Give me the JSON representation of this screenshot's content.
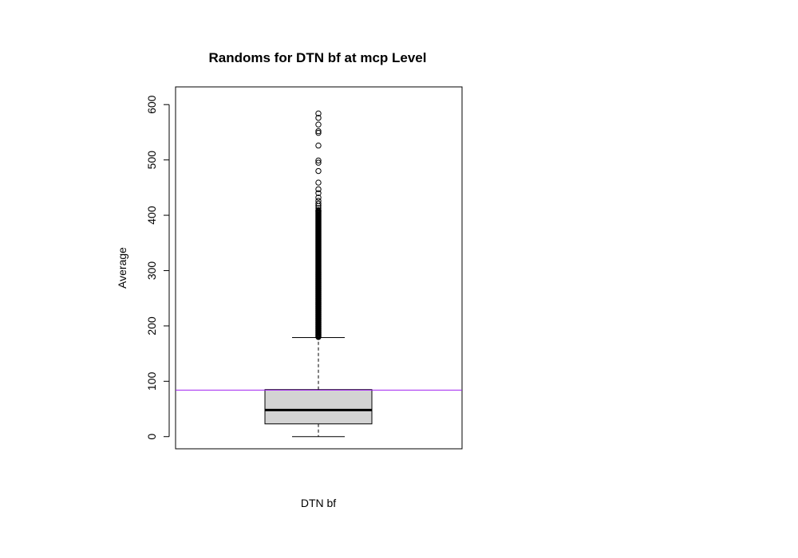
{
  "chart_data": {
    "type": "boxplot",
    "title": "Randoms for DTN bf at mcp Level",
    "xlabel": "DTN bf",
    "ylabel": "Average",
    "ylim": [
      -22,
      632
    ],
    "yticks": [
      0,
      100,
      200,
      300,
      400,
      500,
      600
    ],
    "grid": false,
    "box": {
      "whisker_low": 0,
      "q1": 23,
      "median": 48,
      "q3": 85,
      "whisker_high": 179
    },
    "reference_line": {
      "value": 84,
      "color": "#a020f0"
    },
    "box_fill": "#d3d3d3",
    "outliers": [
      584,
      576,
      564,
      552,
      549,
      526,
      499,
      495,
      480,
      459,
      447,
      440,
      432,
      426,
      421,
      417,
      413,
      408
    ],
    "dense_outlier_range": [
      180,
      410
    ]
  }
}
